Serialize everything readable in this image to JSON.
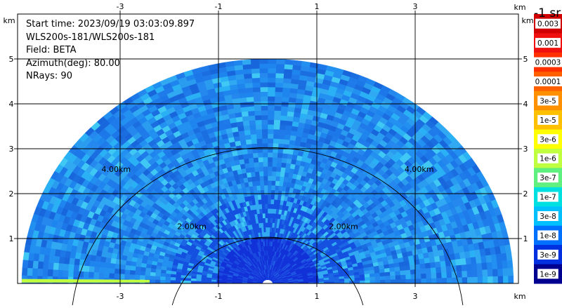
{
  "info": {
    "start_time": "Start time: 2023/09/19 03:03:09.897",
    "instrument": "WLS200s-181/WLS200s-181",
    "field": "Field: BETA",
    "azimuth": "Azimuth(deg): 80.00",
    "nrays": "NRays: 90"
  },
  "colorbar": {
    "title": "-1 sr",
    "labels": [
      "0.003",
      "0.001",
      "0.0003",
      "0.0001",
      "3e-5",
      "1e-5",
      "3e-6",
      "1e-6",
      "3e-7",
      "1e-7",
      "3e-8",
      "1e-8",
      "3e-9",
      "1e-9"
    ],
    "colors": [
      "#d00000",
      "#f01010",
      "#ff3000",
      "#ff6000",
      "#ff9000",
      "#ffc000",
      "#ffff00",
      "#c0ff40",
      "#60f080",
      "#00e0e0",
      "#00c0ff",
      "#0070ff",
      "#0030e0",
      "#000090"
    ]
  },
  "chart_data": {
    "type": "heatmap",
    "projection": "RHI polar sector (range-height)",
    "field": "BETA",
    "azimuth_deg": 80.0,
    "nrays": 90,
    "x_unit_label": "km",
    "y_unit_label": "km",
    "xlim": [
      -5.5,
      4.2
    ],
    "ylim": [
      0,
      5.5
    ],
    "x_ticks": [
      -3,
      -1,
      1,
      3
    ],
    "x_tick_labels": [
      "-3",
      "-1",
      "1",
      "3"
    ],
    "y_ticks": [
      1,
      2,
      3,
      4,
      5
    ],
    "y_tick_labels": [
      "1",
      "2",
      "3",
      "4",
      "5"
    ],
    "range_rings_km": [
      2,
      4
    ],
    "range_ring_labels": [
      "2.00km",
      "4.00km"
    ],
    "max_range_km": 5.0,
    "grid": true,
    "dominant_values": "approx. 1e-8 to 3e-8 sr-1 across sector, lower near instrument"
  }
}
